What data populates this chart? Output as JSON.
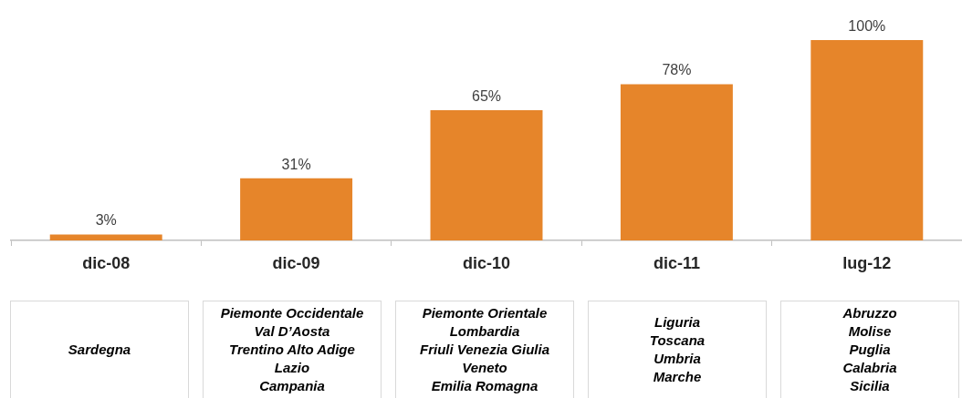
{
  "chart_data": {
    "type": "bar",
    "categories": [
      "dic-08",
      "dic-09",
      "dic-10",
      "dic-11",
      "lug-12"
    ],
    "values": [
      3,
      31,
      65,
      78,
      100
    ],
    "color": "#e6852a",
    "value_labels": [
      "3%",
      "31%",
      "65%",
      "78%",
      "100%"
    ],
    "annotations": [
      "Sardegna",
      "Piemonte Occidentale\nVal D’Aosta\nTrentino Alto Adige\nLazio\nCampania",
      "Piemonte Orientale\nLombardia\nFriuli Venezia Giulia\nVeneto\nEmilia Romagna",
      "Liguria\nToscana\nUmbria\nMarche",
      "Abruzzo\nMolise\nPuglia\nCalabria\nSicilia"
    ]
  }
}
